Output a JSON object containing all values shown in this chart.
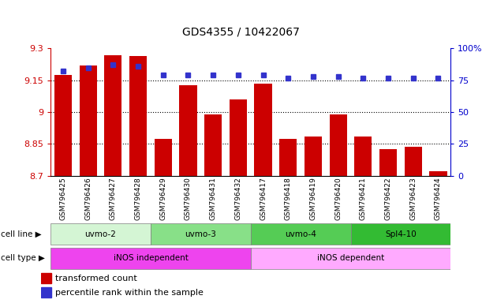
{
  "title": "GDS4355 / 10422067",
  "samples": [
    "GSM796425",
    "GSM796426",
    "GSM796427",
    "GSM796428",
    "GSM796429",
    "GSM796430",
    "GSM796431",
    "GSM796432",
    "GSM796417",
    "GSM796418",
    "GSM796419",
    "GSM796420",
    "GSM796421",
    "GSM796422",
    "GSM796423",
    "GSM796424"
  ],
  "bar_values": [
    9.175,
    9.22,
    9.27,
    9.265,
    8.875,
    9.125,
    8.99,
    9.06,
    9.135,
    8.875,
    8.885,
    8.99,
    8.885,
    8.825,
    8.835,
    8.72
  ],
  "dot_values": [
    82,
    85,
    87,
    86,
    79,
    79,
    79,
    79,
    79,
    77,
    78,
    78,
    77,
    77,
    77,
    77
  ],
  "ylim_left": [
    8.7,
    9.3
  ],
  "ylim_right": [
    0,
    100
  ],
  "yticks_left": [
    8.7,
    8.85,
    9.0,
    9.15,
    9.3
  ],
  "yticks_left_labels": [
    "8.7",
    "8.85",
    "9",
    "9.15",
    "9.3"
  ],
  "yticks_right": [
    0,
    25,
    50,
    75,
    100
  ],
  "yticks_right_labels": [
    "0",
    "25",
    "50",
    "75",
    "100%"
  ],
  "bar_color": "#cc0000",
  "dot_color": "#3333cc",
  "cell_lines": [
    {
      "label": "uvmo-2",
      "start": 0,
      "end": 4,
      "color": "#d4f5d4"
    },
    {
      "label": "uvmo-3",
      "start": 4,
      "end": 8,
      "color": "#88e088"
    },
    {
      "label": "uvmo-4",
      "start": 8,
      "end": 12,
      "color": "#55cc55"
    },
    {
      "label": "Spl4-10",
      "start": 12,
      "end": 16,
      "color": "#33bb33"
    }
  ],
  "cell_types": [
    {
      "label": "iNOS independent",
      "start": 0,
      "end": 8,
      "color": "#ee44ee"
    },
    {
      "label": "iNOS dependent",
      "start": 8,
      "end": 16,
      "color": "#ffaaff"
    }
  ],
  "left_axis_color": "#cc0000",
  "right_axis_color": "#0000cc",
  "plot_bg": "#ffffff",
  "fig_bg": "#ffffff"
}
